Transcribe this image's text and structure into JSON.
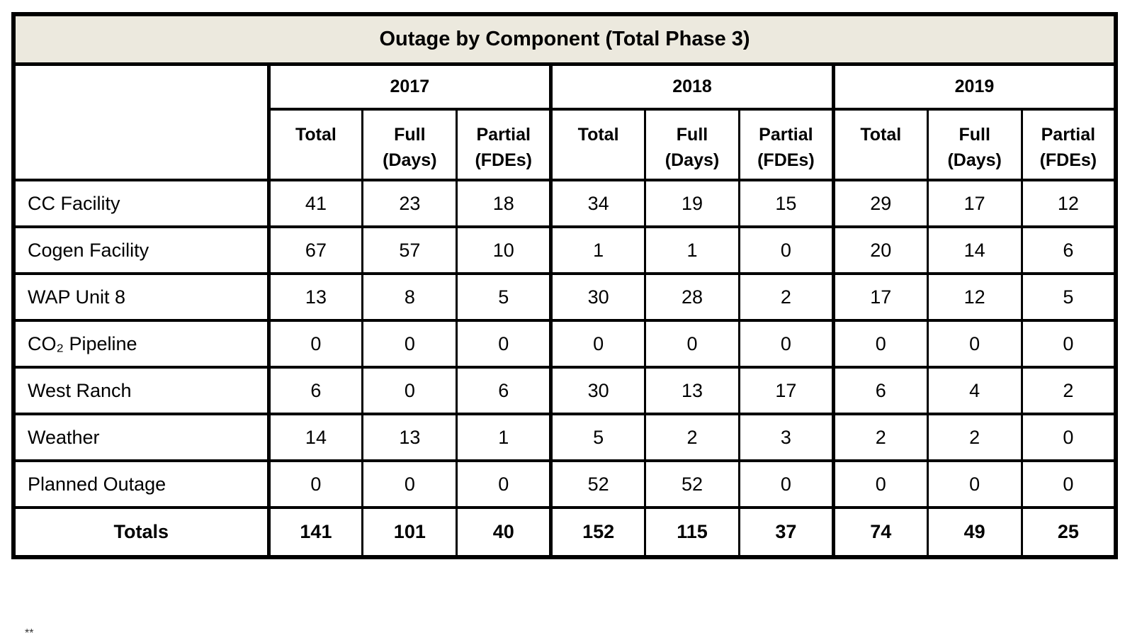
{
  "colors": {
    "title_bg": "#ECE9DE",
    "border": "#000000",
    "page_bg": "#FFFFFF"
  },
  "chart_data": {
    "type": "table",
    "title": "Outage by Component (Total Phase 3)",
    "headers": {
      "years": [
        "2017",
        "2018",
        "2019"
      ],
      "sub": [
        {
          "top": "Total",
          "bottom": ""
        },
        {
          "top": "Full",
          "bottom": "(Days)"
        },
        {
          "top": "Partial",
          "bottom": "(FDEs)"
        }
      ]
    },
    "rows": [
      {
        "label": "CC Facility",
        "values": [
          41,
          23,
          18,
          34,
          19,
          15,
          29,
          17,
          12
        ]
      },
      {
        "label": "Cogen Facility",
        "values": [
          67,
          57,
          10,
          1,
          1,
          0,
          20,
          14,
          6
        ]
      },
      {
        "label": "WAP Unit 8",
        "values": [
          13,
          8,
          5,
          30,
          28,
          2,
          17,
          12,
          5
        ]
      },
      {
        "label": "CO₂ Pipeline",
        "values": [
          0,
          0,
          0,
          0,
          0,
          0,
          0,
          0,
          0
        ]
      },
      {
        "label": "West Ranch",
        "values": [
          6,
          0,
          6,
          30,
          13,
          17,
          6,
          4,
          2
        ]
      },
      {
        "label": "Weather",
        "values": [
          14,
          13,
          1,
          5,
          2,
          3,
          2,
          2,
          0
        ]
      },
      {
        "label": "Planned Outage",
        "values": [
          0,
          0,
          0,
          52,
          52,
          0,
          0,
          0,
          0
        ]
      }
    ],
    "totals": {
      "label": "Totals",
      "values": [
        141,
        101,
        40,
        152,
        115,
        37,
        74,
        49,
        25
      ]
    }
  },
  "footnote_fragment": "**"
}
